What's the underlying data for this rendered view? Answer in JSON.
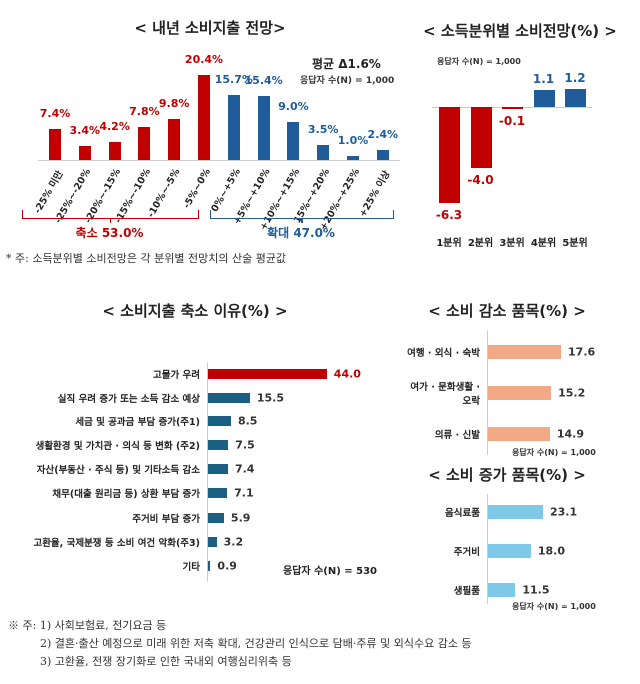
{
  "colors": {
    "red": "#c00000",
    "blue": "#1f5c99",
    "teal": "#1b5f82",
    "salmon": "#f2a986",
    "sky": "#7ec8e8"
  },
  "chart_data": [
    {
      "type": "bar",
      "title": "< 내년 소비지출 전망>",
      "categories": [
        "-25% 미만",
        "-25%~-20%",
        "-20%~-15%",
        "-15%~-10%",
        "-10%~-5%",
        "-5%~0%",
        "0%~+5%",
        "+5%~+10%",
        "+10%~+15%",
        "15%~+20%",
        "+20%~+25%",
        "+25% 이상"
      ],
      "values": [
        7.4,
        3.4,
        4.2,
        7.8,
        9.8,
        20.4,
        15.7,
        15.4,
        9.0,
        3.5,
        1.0,
        2.4
      ],
      "value_labels": [
        "7.4%",
        "3.4%",
        "4.2%",
        "7.8%",
        "9.8%",
        "20.4%",
        "15.7%",
        "15.4%",
        "9.0%",
        "3.5%",
        "1.0%",
        "2.4%"
      ],
      "average": "평균 Δ1.6%",
      "respondents": "응답자 수(N) = 1,000",
      "groups": [
        {
          "label": "축소 53.0%",
          "color": "#c00000"
        },
        {
          "label": "확대 47.0%",
          "color": "#1f5c99"
        }
      ],
      "note": "* 주: 소득분위별 소비전망은 각 분위별 전망치의 산술 평균값"
    },
    {
      "type": "bar",
      "title": "< 소득분위별 소비전망(%) >",
      "respondents": "응답자 수(N) = 1,000",
      "categories": [
        "1분위",
        "2분위",
        "3분위",
        "4분위",
        "5분위"
      ],
      "values": [
        -6.3,
        -4.0,
        -0.1,
        1.1,
        1.2
      ],
      "value_labels": [
        "-6.3",
        "-4.0",
        "-0.1",
        "1.1",
        "1.2"
      ]
    },
    {
      "type": "bar",
      "orientation": "horizontal",
      "title": "< 소비지출 축소 이유(%) >",
      "respondents": "응답자 수(N) = 530",
      "categories": [
        "고물가 우려",
        "실직 우려 증가 또는 소득 감소 예상",
        "세금 및 공과금 부담 증가(주1)",
        "생활환경 및 가치관 · 의식 등 변화 (주2)",
        "자산(부동산 · 주식 등) 및 기타소득 감소",
        "채무(대출 원리금 등) 상환 부담 증가",
        "주거비 부담 증가",
        "고환율, 국제분쟁 등 소비 여건 악화(주3)",
        "기타"
      ],
      "values": [
        44.0,
        15.5,
        8.5,
        7.5,
        7.4,
        7.1,
        5.9,
        3.2,
        0.9
      ],
      "value_labels": [
        "44.0",
        "15.5",
        "8.5",
        "7.5",
        "7.4",
        "7.1",
        "5.9",
        "3.2",
        "0.9"
      ]
    },
    {
      "type": "bar",
      "orientation": "horizontal",
      "title": "< 소비 감소 품목(%) >",
      "respondents": "응답자 수(N) = 1,000",
      "categories": [
        "여행 · 외식 · 숙박",
        "여가 · 문화생활 ·\n오락",
        "의류 · 신발"
      ],
      "values": [
        17.6,
        15.2,
        14.9
      ],
      "value_labels": [
        "17.6",
        "15.2",
        "14.9"
      ]
    },
    {
      "type": "bar",
      "orientation": "horizontal",
      "title": "< 소비 증가 품목(%) >",
      "respondents": "응답자 수(N) = 1,000",
      "categories": [
        "음식료품",
        "주거비",
        "생필품"
      ],
      "values": [
        23.1,
        18.0,
        11.5
      ],
      "value_labels": [
        "23.1",
        "18.0",
        "11.5"
      ]
    }
  ],
  "footnotes": [
    "※ 주: 1) 사회보험료, 전기요금 등",
    "2) 결혼·출산 예정으로 미래 위한 저축 확대, 건강관리 인식으로 담배·주류 및 외식수요 감소 등",
    "3) 고환율, 전쟁 장기화로 인한 국내외 여행심리위축 등"
  ]
}
